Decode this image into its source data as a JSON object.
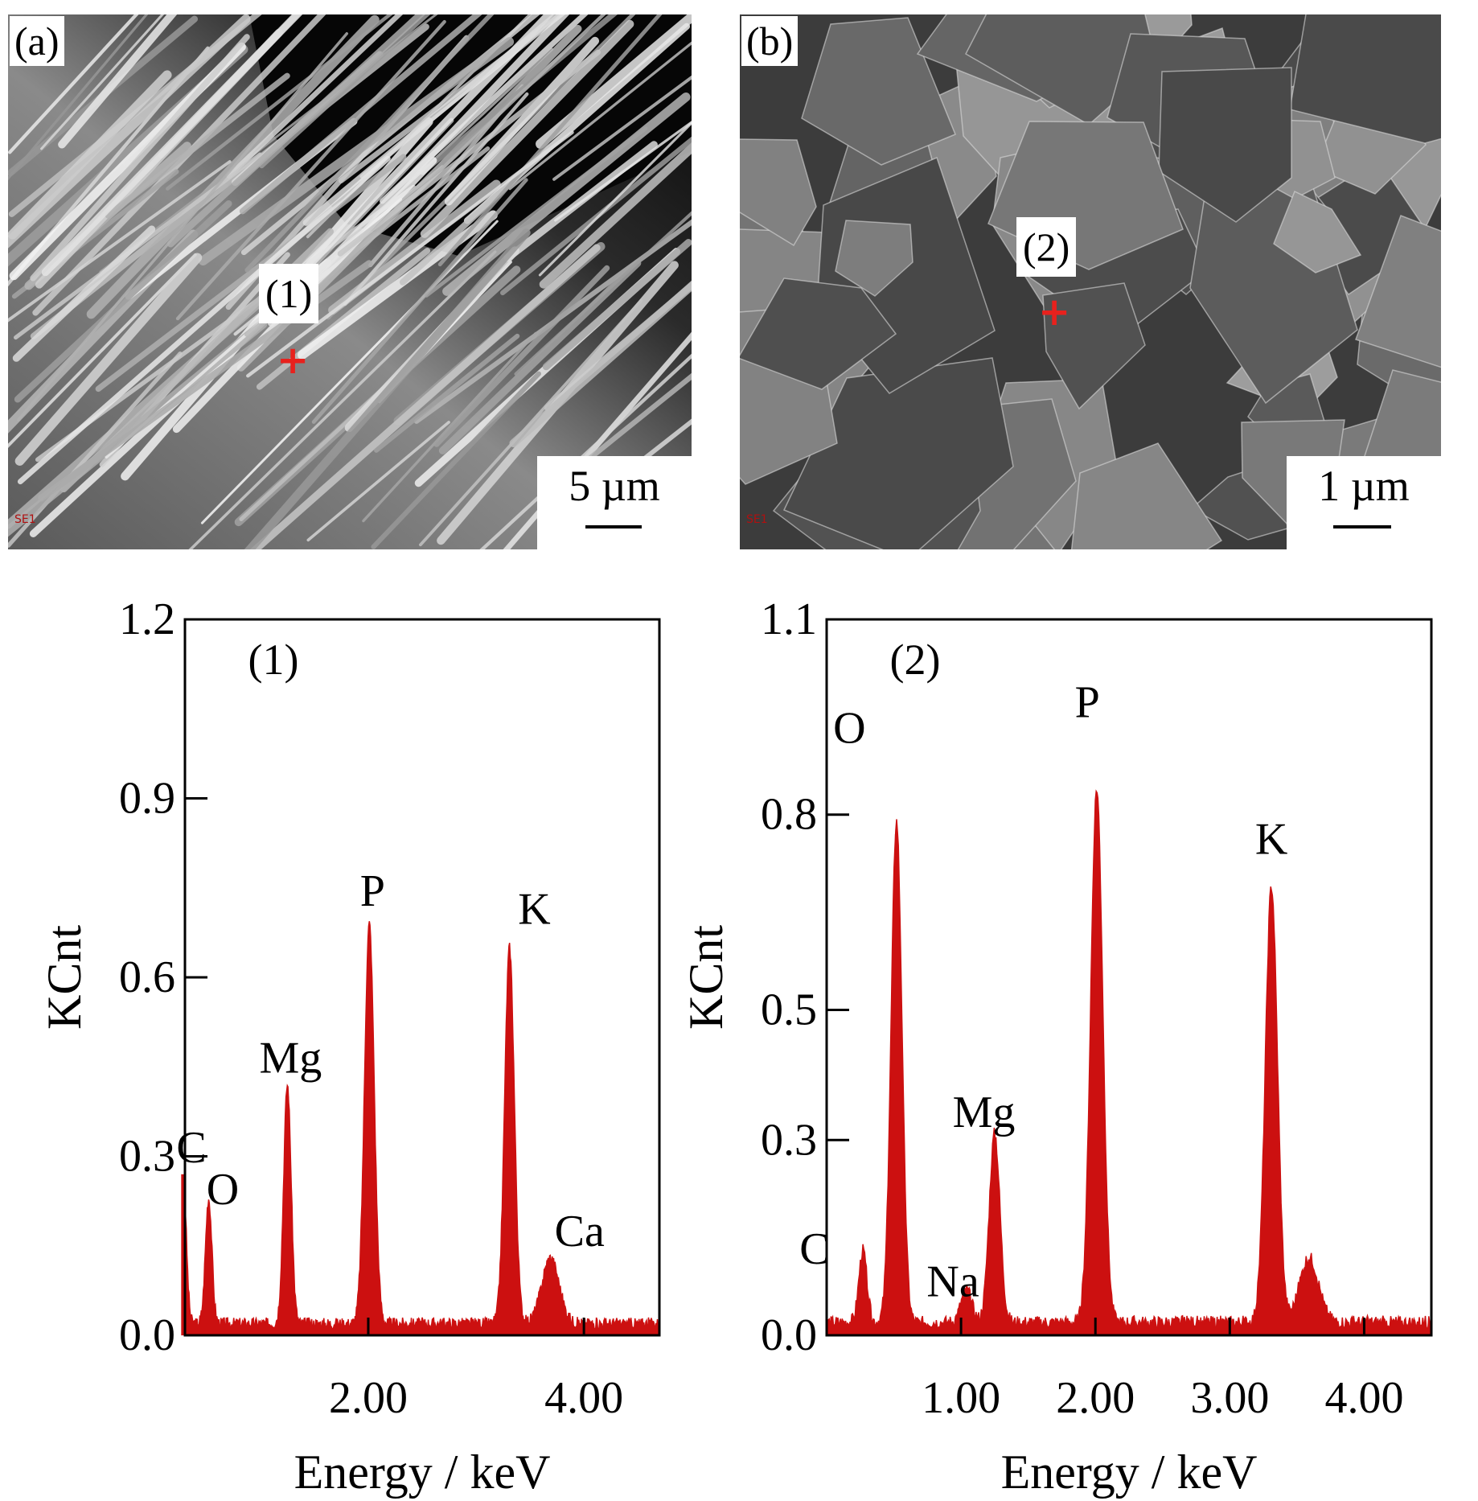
{
  "sem_a": {
    "panel_label": "(a)",
    "point_label": "(1)",
    "scale_text": "5 µm",
    "detector_text": "SE1"
  },
  "sem_b": {
    "panel_label": "(b)",
    "point_label": "(2)",
    "scale_text": "1 µm",
    "detector_text": "SE1"
  },
  "colors": {
    "spectrum": "#cc1010",
    "marker": "#e8211d"
  },
  "chart_data": [
    {
      "type": "bar",
      "panel_label": "(1)",
      "xlabel": "Energy / keV",
      "ylabel": "KCnt",
      "xlim": [
        0.3,
        4.7
      ],
      "ylim": [
        0.0,
        1.2
      ],
      "xticks": [
        2.0,
        4.0
      ],
      "xtick_labels": [
        "2.00",
        "4.00"
      ],
      "yticks": [
        0.0,
        0.3,
        0.6,
        0.9,
        1.2
      ],
      "ytick_labels": [
        "0.0",
        "0.3",
        "0.6",
        "0.9",
        "1.2"
      ],
      "baseline": 0.02,
      "peaks": [
        {
          "element": "C",
          "energy": 0.28,
          "height": 0.27,
          "width": 0.03
        },
        {
          "element": "O",
          "energy": 0.52,
          "height": 0.21,
          "width": 0.03
        },
        {
          "element": "Mg",
          "energy": 1.25,
          "height": 0.4,
          "width": 0.035
        },
        {
          "element": "P",
          "energy": 2.01,
          "height": 0.67,
          "width": 0.045
        },
        {
          "element": "K",
          "energy": 3.31,
          "height": 0.63,
          "width": 0.045
        },
        {
          "element": "Ca",
          "energy": 3.69,
          "height": 0.11,
          "width": 0.08
        }
      ],
      "labels": [
        {
          "text": "C",
          "energy": 0.36,
          "value": 0.29
        },
        {
          "text": "O",
          "energy": 0.65,
          "value": 0.22
        },
        {
          "text": "Mg",
          "energy": 1.28,
          "value": 0.44
        },
        {
          "text": "P",
          "energy": 2.04,
          "value": 0.72
        },
        {
          "text": "K",
          "energy": 3.54,
          "value": 0.69
        },
        {
          "text": "Ca",
          "energy": 3.96,
          "value": 0.15
        }
      ]
    },
    {
      "type": "bar",
      "panel_label": "(2)",
      "xlabel": "Energy / keV",
      "ylabel": "KCnt",
      "xlim": [
        0.0,
        4.5
      ],
      "ylim": [
        0.0,
        1.1
      ],
      "xticks": [
        1.0,
        2.0,
        3.0,
        4.0
      ],
      "xtick_labels": [
        "1.00",
        "2.00",
        "3.00",
        "4.00"
      ],
      "yticks": [
        0.0,
        0.3,
        0.5,
        0.8,
        1.1
      ],
      "ytick_labels": [
        "0.0",
        "0.3",
        "0.5",
        "0.8",
        "1.1"
      ],
      "baseline": 0.02,
      "peaks": [
        {
          "element": "C",
          "energy": 0.27,
          "height": 0.11,
          "width": 0.03
        },
        {
          "element": "O",
          "energy": 0.52,
          "height": 0.77,
          "width": 0.04
        },
        {
          "element": "Na",
          "energy": 1.04,
          "height": 0.05,
          "width": 0.04
        },
        {
          "element": "Mg",
          "energy": 1.25,
          "height": 0.29,
          "width": 0.04
        },
        {
          "element": "P",
          "energy": 2.01,
          "height": 0.82,
          "width": 0.045
        },
        {
          "element": "K",
          "energy": 3.31,
          "height": 0.67,
          "width": 0.045
        },
        {
          "element": "",
          "energy": 3.59,
          "height": 0.1,
          "width": 0.07
        }
      ],
      "labels": [
        {
          "text": "O",
          "energy": 0.17,
          "value": 0.91
        },
        {
          "text": "C",
          "energy": -0.09,
          "value": 0.11
        },
        {
          "text": "Na",
          "energy": 0.94,
          "value": 0.06
        },
        {
          "text": "Mg",
          "energy": 1.17,
          "value": 0.32
        },
        {
          "text": "P",
          "energy": 1.94,
          "value": 0.95
        },
        {
          "text": "K",
          "energy": 3.31,
          "value": 0.74
        }
      ]
    }
  ]
}
